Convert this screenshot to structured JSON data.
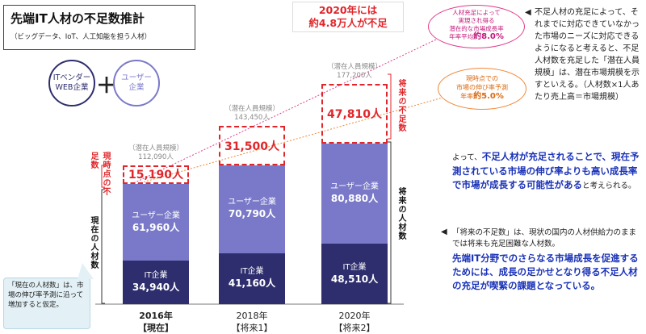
{
  "title": {
    "main": "先端IT人材の不足数推計",
    "sub": "（ビッグデータ、IoT、人工知能を担う人材）"
  },
  "legend": {
    "it_vendor": "ITベンダー\nWEB企業",
    "user": "ユーザー\n企業",
    "plus": "＋"
  },
  "headline": {
    "line1": "2020年には",
    "line2": "約4.8万人が不足"
  },
  "colors": {
    "it_bar": "#2e2e6e",
    "user_bar": "#7a79c9",
    "shortage": "#e0262b",
    "accent_blue": "#1a32b8"
  },
  "chart_data": {
    "type": "bar",
    "stacked": true,
    "categories": [
      "2016年【現在】",
      "2018年【将来1】",
      "2020年【将来2】"
    ],
    "series": [
      {
        "name": "IT企業",
        "values": [
          34940,
          41160,
          48510
        ]
      },
      {
        "name": "ユーザー企業",
        "values": [
          61960,
          70790,
          80880
        ]
      },
      {
        "name": "不足数",
        "values": [
          15190,
          31500,
          47810
        ]
      }
    ],
    "potential_totals": [
      112090,
      143450,
      177200
    ],
    "ylim": [
      0,
      185000
    ]
  },
  "bars": [
    {
      "year": "2016年",
      "tag": "【現在】",
      "it_label": "IT企業",
      "it_value": "34,940人",
      "user_label": "ユーザー企業",
      "user_value": "61,960人",
      "shortage": "15,190人",
      "cap1": "（潜在人員規模）",
      "cap2": "112,090人"
    },
    {
      "year": "2018年",
      "tag": "【将来1】",
      "it_label": "IT企業",
      "it_value": "41,160人",
      "user_label": "ユーザー企業",
      "user_value": "70,790人",
      "shortage": "31,500人",
      "cap1": "（潜在人員規模）",
      "cap2": "143,450人"
    },
    {
      "year": "2020年",
      "tag": "【将来2】",
      "it_label": "IT企業",
      "it_value": "48,510人",
      "user_label": "ユーザー企業",
      "user_value": "80,880人",
      "shortage": "47,810人",
      "cap1": "（潜在人員規模）",
      "cap2": "177,200人"
    }
  ],
  "side_labels": {
    "current_shortage": "現時点の不足数",
    "current_staff": "現在の人材数",
    "future_shortage": "将来の不足数",
    "future_staff": "将来の人材数"
  },
  "bubble_pink": {
    "l1": "人材充足によって",
    "l2": "実現され得る",
    "l3": "潜在的な市場成長率",
    "l4": "年率平均",
    "pct": "約8.0%"
  },
  "bubble_orange": {
    "l1": "現時点での",
    "l2": "市場の伸び率予測",
    "l3": "年率",
    "pct": "約5.0%"
  },
  "note_top": {
    "marker": "◀",
    "text": "不足人材の充足によって、それまでに対応できていなかった市場のニーズに対応できるようになると考えると、不足人材数を充足した「潜在人員規模」は、潜在市場規模を示すといえる。（人材数×1人あたり売上高＝市場規模）"
  },
  "note_mid": {
    "p1": "よって、",
    "b1": "不足人材が充足されることで、現在予測されている市場の伸び率よりも高い成長率で市場が成長する可能性がある",
    "p2": "と考えられる。"
  },
  "note_bottom": {
    "marker": "◀",
    "text": "「将来の不足数」は、現状の国内の人材供給力のままでは将来も充足困難な人材数。",
    "b1": "先端IT分野でのさらなる市場成長を促進するためには、成長の足かせとなり得る不足人材の充足が喫緊の課題となっている。"
  },
  "callout": {
    "text": "「現在の人材数」は、市場の伸び率予測に沿って増加すると仮定。"
  }
}
